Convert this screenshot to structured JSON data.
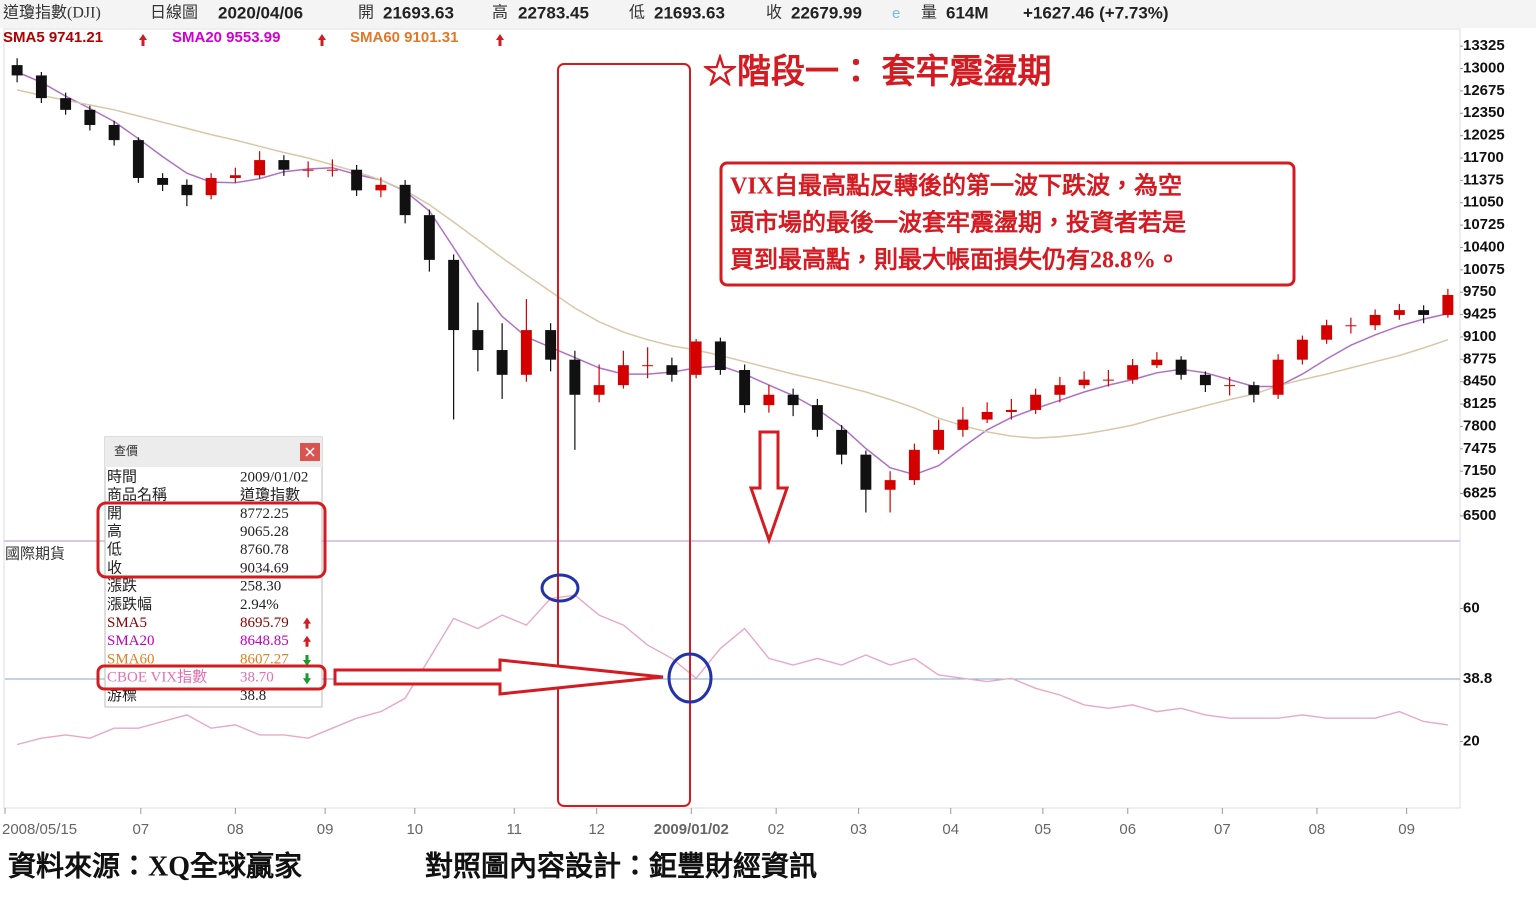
{
  "header": {
    "symbol": "道瓊指數(DJI)",
    "period": "日線圖",
    "date": "2020/04/06",
    "open_label": "開",
    "open": "21693.63",
    "high_label": "高",
    "high": "22783.45",
    "low_label": "低",
    "low": "21693.63",
    "close_label": "收",
    "close": "22679.99",
    "flag": "e",
    "volume_label": "量",
    "volume": "614M",
    "change": "+1627.46 (+7.73%)"
  },
  "title": "☆階段一： 套牢震盪期",
  "annotation": [
    "VIX自最高點反轉後的第一波下跌波，為空",
    "頭市場的最後一波套牢震盪期，投資者若是",
    "買到最高點，則最大帳面損失仍有28.8%。"
  ],
  "popup": {
    "title": "查價",
    "rows": [
      {
        "label": "時間",
        "value": "2009/01/02",
        "color": "#222"
      },
      {
        "label": "商品名稱",
        "value": "道瓊指數",
        "color": "#222"
      },
      {
        "label": "開",
        "value": "8772.25",
        "color": "#222"
      },
      {
        "label": "高",
        "value": "9065.28",
        "color": "#222"
      },
      {
        "label": "低",
        "value": "8760.78",
        "color": "#222"
      },
      {
        "label": "收",
        "value": "9034.69",
        "color": "#222"
      },
      {
        "label": "漲跌",
        "value": "258.30",
        "color": "#222"
      },
      {
        "label": "漲跌幅",
        "value": "2.94%",
        "color": "#222"
      },
      {
        "label": "SMA5",
        "value": "8695.79",
        "color": "#8b0000",
        "arrow": "up"
      },
      {
        "label": "SMA20",
        "value": "8648.85",
        "color": "#c000c0",
        "arrow": "up"
      },
      {
        "label": "SMA60",
        "value": "8607.27",
        "color": "#e08020",
        "arrow": "down"
      },
      {
        "label": "CBOE VIX指數",
        "value": "38.70",
        "color": "#e070b0",
        "arrow": "down"
      },
      {
        "label": "游標",
        "value": "38.8",
        "color": "#222"
      }
    ]
  },
  "footer": {
    "source": "資料來源：XQ全球贏家",
    "design": "對照圖內容設計：鉅豐財經資訊"
  },
  "chart_data": [
    {
      "type": "candlestick",
      "up_color": "#d40000",
      "down_color": "#111111",
      "legend": [
        {
          "label": "SMA5 9741.21",
          "color": "#b00000"
        },
        {
          "label": "SMA20 9553.99",
          "color": "#d000d0"
        },
        {
          "label": "SMA60 9101.31",
          "color": "#e07828"
        }
      ],
      "xlim": [
        0,
        60
      ],
      "ylim": [
        6150,
        13560
      ],
      "yticks": [
        13325,
        13000,
        12675,
        12350,
        12025,
        11700,
        11375,
        11050,
        10725,
        10400,
        10075,
        9750,
        9425,
        9100,
        8775,
        8450,
        8125,
        7800,
        7475,
        7150,
        6825,
        6500
      ],
      "open": [
        13050,
        12900,
        12570,
        12400,
        12180,
        11960,
        11410,
        11310,
        11160,
        11410,
        11450,
        11670,
        11530,
        11530,
        11530,
        11230,
        11310,
        10870,
        10220,
        9200,
        8910,
        8550,
        9200,
        8770,
        8260,
        8400,
        8690,
        8690,
        8550,
        9035,
        8620,
        8110,
        8260,
        8110,
        7750,
        7390,
        6880,
        7020,
        7460,
        7750,
        7900,
        8010,
        8040,
        8260,
        8400,
        8480,
        8480,
        8690,
        8770,
        8550,
        8400,
        8400,
        8260,
        8770,
        9060,
        9270,
        9270,
        9420,
        9490,
        9420
      ],
      "high": [
        13150,
        12950,
        12650,
        12460,
        12240,
        12000,
        11480,
        11390,
        11480,
        11560,
        11800,
        11740,
        11650,
        11680,
        11600,
        11420,
        11380,
        10950,
        10300,
        9600,
        9300,
        9650,
        9300,
        8900,
        8700,
        8900,
        8950,
        8800,
        9070,
        9090,
        8700,
        8400,
        8350,
        8200,
        7820,
        7450,
        7150,
        7550,
        7900,
        8080,
        8150,
        8200,
        8350,
        8520,
        8600,
        8620,
        8780,
        8880,
        8820,
        8600,
        8520,
        8450,
        8850,
        9120,
        9350,
        9380,
        9500,
        9580,
        9560,
        9800
      ],
      "low": [
        12800,
        12500,
        12330,
        12100,
        11880,
        11340,
        11220,
        11000,
        11100,
        11340,
        11400,
        11440,
        11420,
        11430,
        11150,
        11130,
        10750,
        10050,
        7900,
        8600,
        8200,
        8450,
        8600,
        7460,
        8150,
        8350,
        8500,
        8450,
        8500,
        8550,
        8000,
        8000,
        7950,
        7650,
        7250,
        6550,
        6550,
        6950,
        7400,
        7650,
        7850,
        7900,
        7980,
        8150,
        8350,
        8380,
        8420,
        8650,
        8480,
        8300,
        8250,
        8150,
        8200,
        8700,
        9000,
        9150,
        9200,
        9350,
        9300,
        9380
      ],
      "close": [
        12900,
        12570,
        12400,
        12180,
        11960,
        11410,
        11310,
        11160,
        11410,
        11450,
        11670,
        11530,
        11530,
        11530,
        11230,
        11310,
        10870,
        10220,
        9200,
        8910,
        8550,
        9200,
        8770,
        8260,
        8400,
        8690,
        8690,
        8550,
        9035,
        8620,
        8110,
        8260,
        8110,
        7750,
        7390,
        6880,
        7020,
        7460,
        7750,
        7900,
        8010,
        8040,
        8260,
        8400,
        8480,
        8480,
        8690,
        8770,
        8550,
        8400,
        8400,
        8260,
        8770,
        9060,
        9270,
        9270,
        9420,
        9490,
        9420,
        9710
      ],
      "lines": [
        {
          "color": "#b070c8",
          "values": [
            12950,
            12800,
            12600,
            12420,
            12230,
            11980,
            11720,
            11480,
            11350,
            11340,
            11400,
            11500,
            11540,
            11560,
            11460,
            11380,
            11220,
            10930,
            10400,
            9850,
            9400,
            9100,
            8950,
            8800,
            8650,
            8560,
            8560,
            8590,
            8650,
            8680,
            8560,
            8400,
            8250,
            8050,
            7800,
            7480,
            7200,
            7100,
            7230,
            7500,
            7750,
            7930,
            8060,
            8180,
            8300,
            8400,
            8480,
            8580,
            8630,
            8580,
            8480,
            8380,
            8380,
            8560,
            8780,
            8980,
            9130,
            9260,
            9360,
            9440
          ]
        },
        {
          "color": "#d8c8a8",
          "values": [
            12690,
            12610,
            12540,
            12470,
            12400,
            12310,
            12220,
            12130,
            12040,
            11960,
            11870,
            11780,
            11700,
            11600,
            11500,
            11380,
            11230,
            11020,
            10770,
            10510,
            10250,
            10000,
            9760,
            9520,
            9320,
            9170,
            9060,
            8970,
            8910,
            8830,
            8740,
            8650,
            8560,
            8480,
            8390,
            8300,
            8190,
            8070,
            7920,
            7810,
            7720,
            7660,
            7630,
            7650,
            7690,
            7750,
            7820,
            7920,
            8010,
            8100,
            8190,
            8270,
            8390,
            8480,
            8560,
            8650,
            8740,
            8830,
            8940,
            9060
          ]
        }
      ]
    },
    {
      "type": "line",
      "label": "國際期貨",
      "color": "#e8a8c8",
      "xlim": [
        0,
        60
      ],
      "ylim": [
        0,
        80
      ],
      "yticks": [
        60,
        20
      ],
      "cursor": 38.8,
      "cursor_color": "#7aa8d8",
      "xticks": [
        {
          "value": 0,
          "label": "2008/05/15"
        },
        {
          "value": 5.6,
          "label": "07"
        },
        {
          "value": 9.5,
          "label": "08"
        },
        {
          "value": 13.2,
          "label": "09"
        },
        {
          "value": 16.9,
          "label": "10"
        },
        {
          "value": 21,
          "label": "11"
        },
        {
          "value": 24.4,
          "label": "12"
        },
        {
          "value": 28.3,
          "label": "2009/01/02"
        },
        {
          "value": 31.8,
          "label": "02"
        },
        {
          "value": 35.2,
          "label": "03"
        },
        {
          "value": 39,
          "label": "04"
        },
        {
          "value": 42.8,
          "label": "05"
        },
        {
          "value": 46.3,
          "label": "06"
        },
        {
          "value": 50.2,
          "label": "07"
        },
        {
          "value": 54.1,
          "label": "08"
        },
        {
          "value": 57.8,
          "label": "09"
        }
      ],
      "values": [
        19.1,
        21,
        22,
        21,
        24,
        24,
        26,
        28,
        24,
        25,
        22,
        22,
        21,
        24,
        27,
        29,
        33,
        45,
        57,
        54,
        58,
        55,
        63,
        64,
        58,
        55,
        49,
        45,
        39,
        48,
        54,
        45,
        43,
        45,
        43,
        46,
        43,
        45,
        40,
        39,
        38,
        39,
        36,
        34,
        31,
        30,
        31,
        29,
        30,
        28,
        27,
        27,
        27,
        28,
        27,
        27,
        27,
        29,
        26,
        25
      ]
    }
  ]
}
